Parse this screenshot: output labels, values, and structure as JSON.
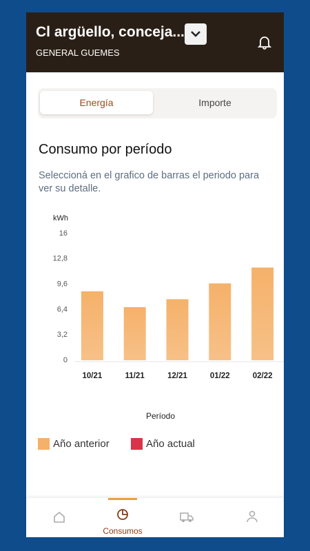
{
  "header": {
    "title": "Cl argüello, conceja...",
    "subtitle": "GENERAL GUEMES"
  },
  "tabs": {
    "items": [
      "Energía",
      "Importe"
    ],
    "active": "Energía"
  },
  "section": {
    "title": "Consumo por período",
    "description": "Seleccioná en el grafico de barras el periodo para ver su detalle."
  },
  "chart_data": {
    "type": "bar",
    "y_label": "kWh",
    "x_label": "Período",
    "categories": [
      "10/21",
      "11/21",
      "12/21",
      "01/22",
      "02/22"
    ],
    "series": [
      {
        "name": "Año anterior",
        "color": "#f5b16a",
        "values": [
          8.7,
          6.7,
          7.7,
          9.7,
          11.7
        ]
      },
      {
        "name": "Año actual",
        "color": "#d9344a",
        "values": [
          null,
          null,
          null,
          null,
          null
        ]
      }
    ],
    "ylim": [
      0,
      16
    ],
    "yticks": [
      0,
      {
        "value": 3.2,
        "label": "3,2"
      },
      {
        "value": 6.4,
        "label": "6,4"
      },
      {
        "value": 9.6,
        "label": "9,6"
      },
      {
        "value": 12.8,
        "label": "12,8"
      },
      16
    ]
  },
  "nav": {
    "active_label": "Consumos"
  }
}
